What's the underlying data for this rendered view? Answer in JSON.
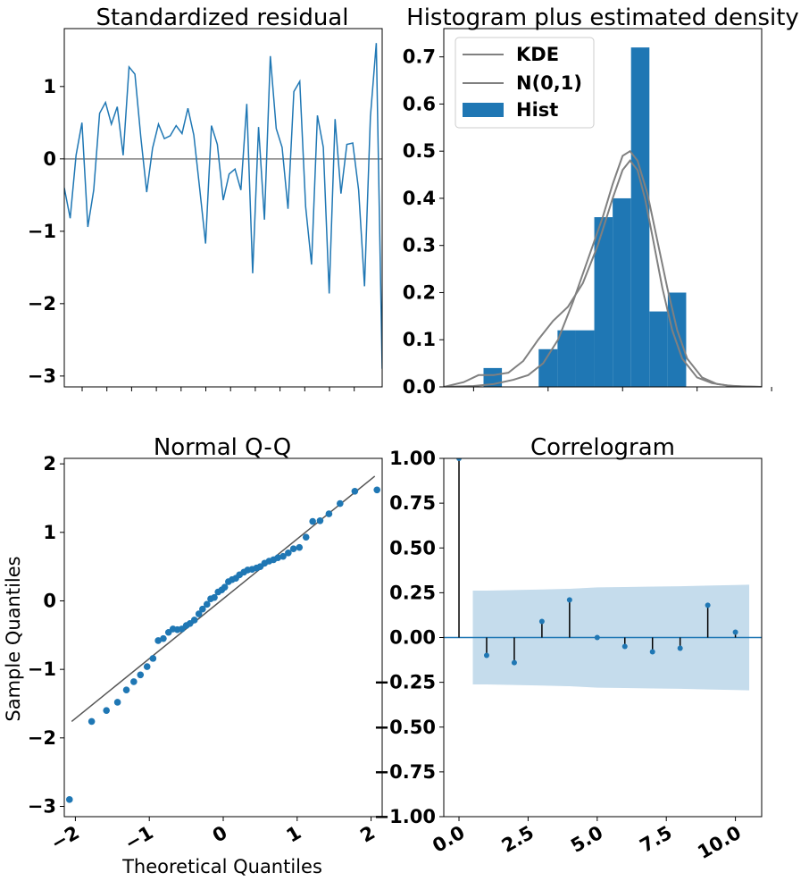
{
  "colors": {
    "blue": "#1f77b4",
    "gray": "#808080",
    "band": "#c5dcec",
    "black": "#000000"
  },
  "chart_data": [
    {
      "type": "line",
      "title": "Standardized residual",
      "xlabel": "",
      "ylabel": "",
      "ylim": [
        -3.15,
        1.8
      ],
      "yticks": [
        "1",
        "0",
        "−1",
        "−2",
        "−3"
      ],
      "ytick_values": [
        1,
        0,
        -1,
        -2,
        -3
      ],
      "xtick_marks": 12,
      "hline": 0,
      "series": [
        {
          "values": [
            -0.4,
            -0.82,
            0.05,
            0.5,
            -0.94,
            -0.43,
            0.63,
            0.78,
            0.48,
            0.72,
            0.05,
            1.27,
            1.17,
            0.3,
            -0.46,
            0.15,
            0.48,
            0.28,
            0.32,
            0.46,
            0.35,
            0.7,
            0.33,
            -0.41,
            -1.17,
            0.46,
            0.2,
            -0.57,
            -0.21,
            -0.14,
            -0.43,
            0.76,
            -1.58,
            0.44,
            -0.84,
            1.42,
            0.42,
            0.16,
            -0.69,
            0.93,
            1.07,
            -0.66,
            -1.46,
            0.6,
            0.16,
            -1.86,
            0.55,
            -0.48,
            0.2,
            0.22,
            -0.43,
            -1.76,
            0.58,
            1.6,
            -2.9
          ]
        }
      ]
    },
    {
      "type": "bar",
      "title": "Histogram plus estimated density",
      "xlim": [
        -3.6,
        2.8
      ],
      "ylim": [
        0,
        0.76
      ],
      "yticks": [
        "0.0",
        "0.1",
        "0.2",
        "0.3",
        "0.4",
        "0.5",
        "0.6",
        "0.7"
      ],
      "ytick_values": [
        0,
        0.1,
        0.2,
        0.3,
        0.4,
        0.5,
        0.6,
        0.7
      ],
      "xtick_marks": 5,
      "legend": {
        "placement": "top-left",
        "entries": [
          "KDE",
          "N(0,1)",
          "Hist"
        ]
      },
      "bins": [
        {
          "x0": -2.8,
          "x1": -2.43,
          "value": 0.04
        },
        {
          "x0": -1.69,
          "x1": -1.31,
          "value": 0.08
        },
        {
          "x0": -1.31,
          "x1": -0.94,
          "value": 0.12
        },
        {
          "x0": -0.94,
          "x1": -0.57,
          "value": 0.12
        },
        {
          "x0": -0.57,
          "x1": -0.2,
          "value": 0.36
        },
        {
          "x0": -0.2,
          "x1": 0.17,
          "value": 0.4
        },
        {
          "x0": 0.17,
          "x1": 0.54,
          "value": 0.72
        },
        {
          "x0": 0.54,
          "x1": 0.91,
          "value": 0.16
        },
        {
          "x0": 0.91,
          "x1": 1.28,
          "value": 0.2
        }
      ],
      "kde": {
        "x": [
          -3.6,
          -3.2,
          -2.9,
          -2.6,
          -2.3,
          -2.0,
          -1.7,
          -1.4,
          -1.1,
          -0.8,
          -0.5,
          -0.2,
          0.0,
          0.15,
          0.3,
          0.45,
          0.6,
          0.8,
          1.0,
          1.2,
          1.5,
          1.8,
          2.1,
          2.4,
          2.8
        ],
        "y": [
          0.0,
          0.01,
          0.025,
          0.025,
          0.03,
          0.055,
          0.1,
          0.14,
          0.17,
          0.22,
          0.3,
          0.4,
          0.46,
          0.48,
          0.46,
          0.4,
          0.32,
          0.21,
          0.12,
          0.06,
          0.02,
          0.008,
          0.003,
          0.001,
          0.0
        ]
      },
      "normal": {
        "x": [
          -3.6,
          -3.0,
          -2.6,
          -2.2,
          -1.9,
          -1.6,
          -1.3,
          -1.0,
          -0.7,
          -0.4,
          -0.2,
          0.0,
          0.15,
          0.3,
          0.5,
          0.7,
          0.9,
          1.1,
          1.3,
          1.6,
          1.9,
          2.2,
          2.8
        ],
        "y": [
          0.0,
          0.002,
          0.006,
          0.015,
          0.025,
          0.05,
          0.1,
          0.18,
          0.27,
          0.36,
          0.43,
          0.49,
          0.5,
          0.48,
          0.41,
          0.31,
          0.21,
          0.12,
          0.06,
          0.02,
          0.006,
          0.002,
          0.0
        ]
      }
    },
    {
      "type": "scatter",
      "title": "Normal Q-Q",
      "xlabel": "Theoretical Quantiles",
      "ylabel": "Sample Quantiles",
      "xlim": [
        -2.15,
        2.15
      ],
      "ylim": [
        -3.15,
        2.08
      ],
      "xticks": [
        "−2",
        "−1",
        "0",
        "1",
        "2"
      ],
      "xtick_values": [
        -2,
        -1,
        0,
        1,
        2
      ],
      "yticks": [
        "2",
        "1",
        "0",
        "−1",
        "−2",
        "−3"
      ],
      "ytick_values": [
        2,
        1,
        0,
        -1,
        -2,
        -3
      ],
      "reference_line": {
        "x": [
          -2.05,
          2.05
        ],
        "y": [
          -1.76,
          1.82
        ]
      },
      "points": {
        "x": [
          -2.08,
          -1.78,
          -1.58,
          -1.43,
          -1.31,
          -1.21,
          -1.12,
          -1.03,
          -0.95,
          -0.88,
          -0.81,
          -0.74,
          -0.68,
          -0.62,
          -0.56,
          -0.5,
          -0.45,
          -0.39,
          -0.33,
          -0.28,
          -0.22,
          -0.17,
          -0.12,
          -0.07,
          -0.02,
          0.02,
          0.07,
          0.12,
          0.17,
          0.22,
          0.28,
          0.33,
          0.39,
          0.45,
          0.5,
          0.56,
          0.62,
          0.68,
          0.74,
          0.81,
          0.88,
          0.95,
          1.03,
          1.12,
          1.21,
          1.31,
          1.43,
          1.58,
          1.78,
          2.08
        ],
        "y": [
          -2.9,
          -1.76,
          -1.6,
          -1.48,
          -1.3,
          -1.18,
          -1.08,
          -0.96,
          -0.84,
          -0.58,
          -0.55,
          -0.46,
          -0.41,
          -0.42,
          -0.41,
          -0.36,
          -0.33,
          -0.28,
          -0.19,
          -0.12,
          -0.05,
          0.03,
          0.05,
          0.13,
          0.16,
          0.2,
          0.28,
          0.31,
          0.33,
          0.38,
          0.42,
          0.45,
          0.46,
          0.48,
          0.5,
          0.55,
          0.58,
          0.6,
          0.63,
          0.65,
          0.7,
          0.76,
          0.78,
          0.93,
          1.16,
          1.17,
          1.27,
          1.42,
          1.6,
          1.62
        ]
      }
    },
    {
      "type": "bar",
      "subtype": "stem",
      "title": "Correlogram",
      "xlim": [
        -0.55,
        10.95
      ],
      "ylim": [
        -1.0,
        1.0
      ],
      "xticks": [
        "0.0",
        "2.5",
        "5.0",
        "7.5",
        "10.0"
      ],
      "xtick_values": [
        0,
        2.5,
        5,
        7.5,
        10
      ],
      "yticks": [
        "1.00",
        "0.75",
        "0.50",
        "0.25",
        "0.00",
        "−0.25",
        "−0.50",
        "−0.75",
        "−1.00"
      ],
      "ytick_values": [
        1,
        0.75,
        0.5,
        0.25,
        0,
        -0.25,
        -0.5,
        -0.75,
        -1
      ],
      "lags": [
        0,
        1,
        2,
        3,
        4,
        5,
        6,
        7,
        8,
        9,
        10
      ],
      "values": [
        1.0,
        -0.1,
        -0.14,
        0.09,
        0.21,
        0.0,
        -0.05,
        -0.08,
        -0.06,
        0.18,
        0.03
      ],
      "confidence_band": {
        "x": [
          0.5,
          1,
          2,
          3,
          4,
          5,
          6,
          7,
          8,
          9,
          10,
          10.5
        ],
        "upper": [
          0.262,
          0.262,
          0.265,
          0.268,
          0.272,
          0.28,
          0.282,
          0.284,
          0.286,
          0.29,
          0.293,
          0.295
        ],
        "lower": [
          -0.262,
          -0.262,
          -0.265,
          -0.268,
          -0.272,
          -0.28,
          -0.282,
          -0.284,
          -0.286,
          -0.29,
          -0.293,
          -0.295
        ]
      }
    }
  ]
}
